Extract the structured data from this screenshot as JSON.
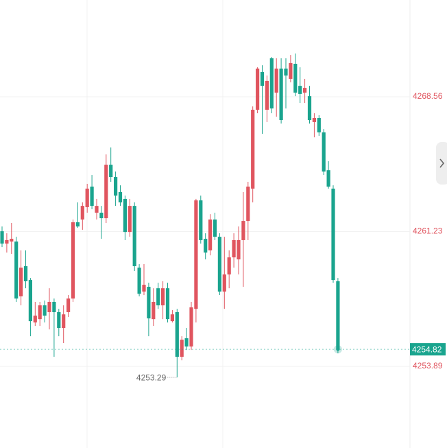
{
  "chart_data": {
    "type": "candlestick",
    "up_color": "#e0555f",
    "down_color": "#1aa48e",
    "open": [
      4261.24,
      4260.57,
      4260.68,
      4260.68,
      4257.7,
      4259.34,
      4258.59,
      4256.28,
      4256.46,
      4257.21,
      4256.84,
      4257.4,
      4256.84,
      4255.98,
      4256.84,
      4257.58,
      4261.73,
      4261.88,
      4262.55,
      4263.67,
      4262.25,
      4262.25,
      4261.95,
      4264.86,
      4264.19,
      4263.37,
      4263.0,
      4261.2,
      4262.62,
      4259.26,
      4257.96,
      4258.22,
      4256.46,
      4258.14,
      4257.21,
      4258.14,
      4256.35,
      4256.84,
      4254.41,
      4255.42,
      4254.97,
      4257.02,
      4262.92,
      4260.83,
      4260.2,
      4261.88,
      4260.94,
      4257.96,
      4258.89,
      4259.82,
      4259.71,
      4260.76,
      4261.8,
      4263.56,
      4267.85,
      4269.9,
      4267.85,
      4270.65,
      4268.78,
      4270.09,
      4270.09,
      4269.53,
      4270.35,
      4269.15,
      4268.78,
      4268.59,
      4267.18,
      4267.4,
      4266.62,
      4264.56,
      4263.56,
      4258.52
    ],
    "high": [
      4261.5,
      4261.13,
      4261.69,
      4260.94,
      4260.2,
      4260.2,
      4258.7,
      4257.4,
      4257.4,
      4257.47,
      4258.14,
      4257.58,
      4257.02,
      4257.21,
      4257.77,
      4261.88,
      4262.81,
      4262.81,
      4263.82,
      4264.3,
      4263.0,
      4262.62,
      4265.42,
      4265.8,
      4264.49,
      4263.74,
      4263.18,
      4263.0,
      4262.81,
      4259.45,
      4259.45,
      4258.44,
      4258.14,
      4258.44,
      4258.52,
      4258.44,
      4256.95,
      4257.02,
      4255.53,
      4255.98,
      4257.4,
      4263.0,
      4263.18,
      4261.13,
      4262.17,
      4262.25,
      4261.13,
      4260.94,
      4260.2,
      4261.13,
      4261.5,
      4263.37,
      4263.93,
      4268.03,
      4270.16,
      4270.27,
      4269.71,
      4270.72,
      4270.65,
      4270.65,
      4270.65,
      4270.83,
      4270.91,
      4270.16,
      4269.53,
      4269.15,
      4267.66,
      4267.55,
      4266.8,
      4265.05,
      4263.74,
      4258.7
    ],
    "low": [
      4260.38,
      4260.08,
      4260.01,
      4257.4,
      4257.21,
      4258.14,
      4255.53,
      4256.09,
      4256.09,
      4256.28,
      4255.9,
      4254.41,
      4255.53,
      4255.16,
      4256.58,
      4257.4,
      4261.43,
      4261.32,
      4262.25,
      4262.44,
      4261.88,
      4260.83,
      4261.69,
      4263.93,
      4262.62,
      4262.62,
      4260.76,
      4260.94,
      4259.08,
      4257.7,
      4257.77,
      4255.53,
      4256.09,
      4257.02,
      4256.46,
      4256.28,
      4256.28,
      4253.29,
      4254.22,
      4254.78,
      4254.78,
      4256.28,
      4260.57,
      4259.71,
      4259.93,
      4260.76,
      4257.77,
      4257.02,
      4258.14,
      4259.26,
      4258.89,
      4258.22,
      4260.76,
      4262.81,
      4267.66,
      4266.54,
      4267.18,
      4267.66,
      4267.47,
      4267.1,
      4267.92,
      4269.34,
      4268.59,
      4268.22,
      4268.22,
      4267.1,
      4266.35,
      4266.43,
      4264.3,
      4263.56,
      4258.44,
      4254.6
    ],
    "close": [
      4260.57,
      4260.76,
      4260.83,
      4257.58,
      4259.26,
      4258.52,
      4256.35,
      4256.65,
      4257.21,
      4256.65,
      4257.4,
      4256.84,
      4255.98,
      4256.72,
      4257.58,
      4261.73,
      4261.5,
      4262.62,
      4263.56,
      4262.62,
      4262.62,
      4261.95,
      4264.86,
      4264.19,
      4263.18,
      4262.81,
      4261.2,
      4262.62,
      4259.34,
      4257.84,
      4258.33,
      4256.5,
      4257.4,
      4257.21,
      4258.14,
      4256.46,
      4256.72,
      4254.41,
      4255.34,
      4254.97,
      4257.1,
      4262.92,
      4260.76,
      4260.08,
      4261.88,
      4260.94,
      4257.96,
      4258.89,
      4259.82,
      4260.76,
      4260.76,
      4261.8,
      4263.67,
      4267.85,
      4270.09,
      4269.15,
      4269.42,
      4267.92,
      4270.09,
      4267.29,
      4269.71,
      4270.39,
      4268.78,
      4268.71,
      4269.04,
      4267.29,
      4267.4,
      4266.62,
      4264.49,
      4263.67,
      4258.59,
      4254.82
    ],
    "ylim": [
      4249.45,
      4273.82
    ],
    "yticks": [
      4253.89,
      4261.23,
      4268.56
    ],
    "last_price": 4254.82,
    "low_annotation": 4253.29,
    "grid": true
  }
}
